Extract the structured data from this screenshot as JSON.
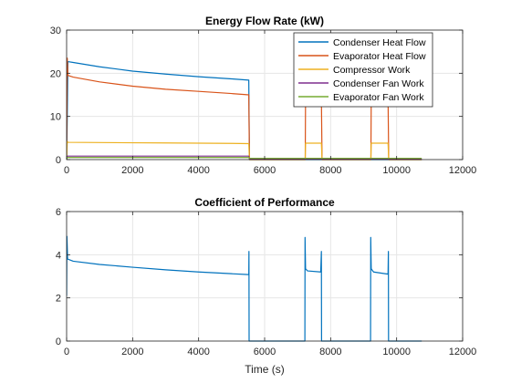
{
  "chart_data": [
    {
      "type": "line",
      "title": "Energy Flow Rate (kW)",
      "xlabel": "",
      "ylabel": "",
      "xlim": [
        0,
        12000
      ],
      "ylim": [
        0,
        30
      ],
      "xticks": [
        0,
        2000,
        4000,
        6000,
        8000,
        10000,
        12000
      ],
      "yticks": [
        0,
        10,
        20,
        30
      ],
      "xtick_labels": [
        "0",
        "2000",
        "4000",
        "6000",
        "8000",
        "10000",
        "12000"
      ],
      "ytick_labels": [
        "0",
        "10",
        "20",
        "30"
      ],
      "grid": true,
      "legend_position": "top-right",
      "series": [
        {
          "name": "Condenser Heat Flow",
          "color": "#0072BD",
          "points": [
            [
              0,
              0
            ],
            [
              20,
              10
            ],
            [
              40,
              22.7
            ],
            [
              200,
              22.5
            ],
            [
              1000,
              21.5
            ],
            [
              2000,
              20.5
            ],
            [
              3000,
              19.8
            ],
            [
              4000,
              19.2
            ],
            [
              5000,
              18.7
            ],
            [
              5520,
              18.4
            ],
            [
              5540,
              0
            ],
            [
              7240,
              0
            ],
            [
              7260,
              0
            ],
            [
              7740,
              0
            ],
            [
              9220,
              0
            ],
            [
              9240,
              0
            ],
            [
              9760,
              0
            ],
            [
              10760,
              0
            ]
          ]
        },
        {
          "name": "Evaporator Heat Flow",
          "color": "#D95319",
          "points": [
            [
              0,
              0
            ],
            [
              20,
              23.5
            ],
            [
              40,
              19.5
            ],
            [
              200,
              19.1
            ],
            [
              1000,
              18
            ],
            [
              2000,
              17
            ],
            [
              3000,
              16.3
            ],
            [
              4000,
              15.8
            ],
            [
              5000,
              15.3
            ],
            [
              5520,
              15
            ],
            [
              5540,
              0
            ],
            [
              7230,
              0
            ],
            [
              7240,
              14.2
            ],
            [
              7720,
              14.2
            ],
            [
              7740,
              0
            ],
            [
              9220,
              0
            ],
            [
              9230,
              14.2
            ],
            [
              9740,
              14.2
            ],
            [
              9760,
              0
            ],
            [
              10760,
              0
            ]
          ]
        },
        {
          "name": "Compressor Work",
          "color": "#EDB120",
          "points": [
            [
              0,
              0
            ],
            [
              20,
              4.2
            ],
            [
              40,
              4
            ],
            [
              1000,
              3.95
            ],
            [
              2000,
              3.9
            ],
            [
              3000,
              3.85
            ],
            [
              4000,
              3.8
            ],
            [
              5000,
              3.75
            ],
            [
              5520,
              3.7
            ],
            [
              5540,
              0
            ],
            [
              7230,
              0
            ],
            [
              7240,
              3.8
            ],
            [
              7720,
              3.8
            ],
            [
              7740,
              0
            ],
            [
              9220,
              0
            ],
            [
              9230,
              3.8
            ],
            [
              9740,
              3.8
            ],
            [
              9760,
              0
            ],
            [
              10760,
              0
            ]
          ]
        },
        {
          "name": "Condenser Fan Work",
          "color": "#7E2F8E",
          "points": [
            [
              0,
              0
            ],
            [
              20,
              0.8
            ],
            [
              5520,
              0.8
            ],
            [
              5540,
              0.15
            ],
            [
              10760,
              0.15
            ]
          ]
        },
        {
          "name": "Evaporator Fan Work",
          "color": "#77AC30",
          "points": [
            [
              0,
              0
            ],
            [
              20,
              0.5
            ],
            [
              5520,
              0.5
            ],
            [
              5540,
              0.3
            ],
            [
              10760,
              0.3
            ]
          ]
        }
      ]
    },
    {
      "type": "line",
      "title": "Coefficient of Performance",
      "xlabel": "Time (s)",
      "ylabel": "",
      "xlim": [
        0,
        12000
      ],
      "ylim": [
        0,
        6
      ],
      "xticks": [
        0,
        2000,
        4000,
        6000,
        8000,
        10000,
        12000
      ],
      "yticks": [
        0,
        2,
        4,
        6
      ],
      "xtick_labels": [
        "0",
        "2000",
        "4000",
        "6000",
        "8000",
        "10000",
        "12000"
      ],
      "ytick_labels": [
        "0",
        "2",
        "4",
        "6"
      ],
      "grid": true,
      "series": [
        {
          "color": "#0072BD",
          "points": [
            [
              0,
              2.1
            ],
            [
              10,
              4.85
            ],
            [
              30,
              3.8
            ],
            [
              200,
              3.7
            ],
            [
              1000,
              3.55
            ],
            [
              2000,
              3.42
            ],
            [
              3000,
              3.3
            ],
            [
              4000,
              3.2
            ],
            [
              5000,
              3.12
            ],
            [
              5520,
              3.08
            ],
            [
              5525,
              4.15
            ],
            [
              5530,
              0
            ],
            [
              7220,
              0
            ],
            [
              7225,
              4.8
            ],
            [
              7240,
              3.35
            ],
            [
              7300,
              3.25
            ],
            [
              7700,
              3.2
            ],
            [
              7720,
              4.15
            ],
            [
              7725,
              0
            ],
            [
              9210,
              0
            ],
            [
              9215,
              4.8
            ],
            [
              9230,
              3.35
            ],
            [
              9300,
              3.2
            ],
            [
              9740,
              3.1
            ],
            [
              9750,
              4.15
            ],
            [
              9755,
              0
            ],
            [
              10760,
              0
            ]
          ]
        }
      ]
    }
  ]
}
